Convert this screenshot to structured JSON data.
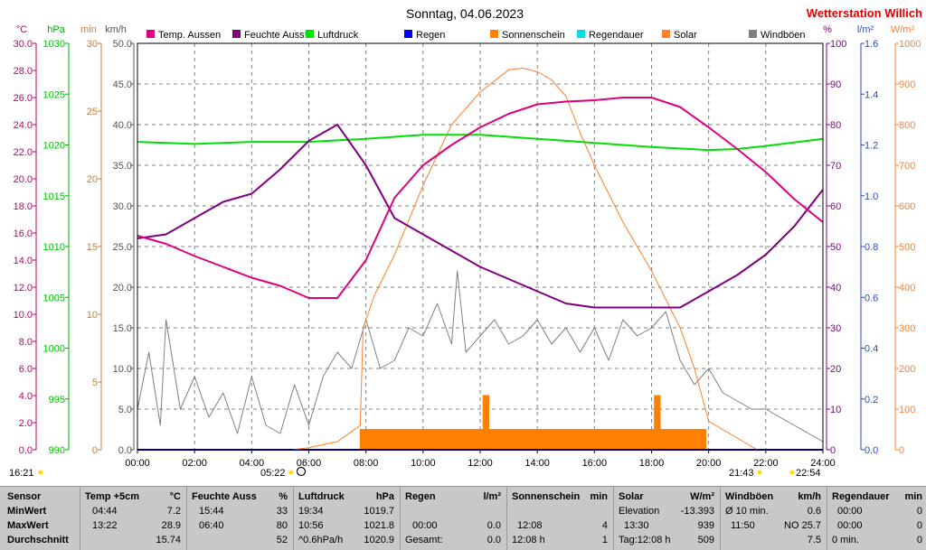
{
  "header": {
    "title": "Sonntag, 04.06.2023",
    "brand": "Wetterstation Willich"
  },
  "colors": {
    "temp": "#e0007f",
    "humidity": "#7f007f",
    "pressure": "#00e000",
    "rain": "#0000ff",
    "sunshine": "#ff7f00",
    "rainduration": "#00e0e0",
    "solar": "#ff7f2a",
    "gust": "#7f7f7f"
  },
  "legend": [
    {
      "key": "temp",
      "label": "Temp. Aussen"
    },
    {
      "key": "humidity",
      "label": "Feuchte Auss*"
    },
    {
      "key": "pressure",
      "label": "Luftdruck"
    },
    {
      "key": "rain",
      "label": "Regen"
    },
    {
      "key": "sunshine",
      "label": "Sonnenschein"
    },
    {
      "key": "rainduration",
      "label": "Regendauer"
    },
    {
      "key": "solar",
      "label": "Solar"
    },
    {
      "key": "gust",
      "label": "Windböen"
    }
  ],
  "axes": {
    "temp": {
      "unit": "°C",
      "min": 0,
      "max": 30,
      "ticks": [
        "0.0",
        "2.0",
        "4.0",
        "6.0",
        "8.0",
        "10.0",
        "12.0",
        "14.0",
        "16.0",
        "18.0",
        "20.0",
        "22.0",
        "24.0",
        "26.0",
        "28.0",
        "30.0"
      ]
    },
    "pressure": {
      "unit": "hPa",
      "ticks": [
        "990",
        "995",
        "1000",
        "1005",
        "1010",
        "1015",
        "1020",
        "1025",
        "1030"
      ]
    },
    "minutes": {
      "unit": "min",
      "ticks": [
        "0",
        "5",
        "10",
        "15",
        "20",
        "25",
        "30"
      ]
    },
    "wind": {
      "unit": "km/h",
      "ticks": [
        "0.0",
        "5.0",
        "10.0",
        "15.0",
        "20.0",
        "25.0",
        "30.0",
        "35.0",
        "40.0",
        "45.0",
        "50.0"
      ]
    },
    "humidity": {
      "unit": "%",
      "ticks": [
        "0",
        "10",
        "20",
        "30",
        "40",
        "50",
        "60",
        "70",
        "80",
        "90",
        "100"
      ]
    },
    "rain": {
      "unit": "l/m²",
      "ticks": [
        "0.0",
        "0.2",
        "0.4",
        "0.6",
        "0.8",
        "1.0",
        "1.2",
        "1.4",
        "1.6"
      ]
    },
    "solar": {
      "unit": "W/m²",
      "ticks": [
        "0",
        "100",
        "200",
        "300",
        "400",
        "500",
        "600",
        "700",
        "800",
        "900",
        "1000"
      ]
    },
    "time": {
      "ticks": [
        "00:00",
        "02:00",
        "04:00",
        "06:00",
        "08:00",
        "10:00",
        "12:00",
        "14:00",
        "16:00",
        "18:00",
        "20:00",
        "22:00",
        "24:00"
      ]
    }
  },
  "markers": {
    "left_time": "16:21",
    "sunrise": "05:22",
    "sunset": "21:43",
    "right_time": "22:54"
  },
  "chart_data": {
    "type": "line",
    "x_unit": "hour of day",
    "xlim": [
      0,
      24
    ],
    "grid": true,
    "series": [
      {
        "name": "Temp. Aussen",
        "axis": "temp",
        "points": [
          [
            0,
            15.8
          ],
          [
            1,
            15.2
          ],
          [
            2,
            14.3
          ],
          [
            3,
            13.5
          ],
          [
            4,
            12.7
          ],
          [
            5,
            12.1
          ],
          [
            6,
            11.2
          ],
          [
            7,
            11.2
          ],
          [
            8,
            14
          ],
          [
            9,
            18.6
          ],
          [
            10,
            21
          ],
          [
            11,
            22.5
          ],
          [
            12,
            23.8
          ],
          [
            13,
            24.8
          ],
          [
            14,
            25.5
          ],
          [
            15,
            25.7
          ],
          [
            16,
            25.8
          ],
          [
            17,
            26
          ],
          [
            18,
            26
          ],
          [
            19,
            25.3
          ],
          [
            20,
            23.8
          ],
          [
            21,
            22.2
          ],
          [
            22,
            20.5
          ],
          [
            23,
            18.5
          ],
          [
            24,
            16.8
          ]
        ]
      },
      {
        "name": "Feuchte Auss*",
        "axis": "humidity",
        "points": [
          [
            0,
            52
          ],
          [
            1,
            53
          ],
          [
            2,
            57
          ],
          [
            3,
            61
          ],
          [
            4,
            63
          ],
          [
            5,
            69
          ],
          [
            6,
            76
          ],
          [
            7,
            80
          ],
          [
            8,
            70
          ],
          [
            9,
            57
          ],
          [
            10,
            53
          ],
          [
            11,
            49
          ],
          [
            12,
            45
          ],
          [
            13,
            42
          ],
          [
            14,
            39
          ],
          [
            15,
            36
          ],
          [
            16,
            35
          ],
          [
            17,
            35
          ],
          [
            18,
            35
          ],
          [
            19,
            35
          ],
          [
            20,
            39
          ],
          [
            21,
            43
          ],
          [
            22,
            48
          ],
          [
            23,
            55
          ],
          [
            24,
            64
          ]
        ]
      },
      {
        "name": "Luftdruck",
        "axis": "pressure",
        "points": [
          [
            0,
            1020.3
          ],
          [
            2,
            1020.1
          ],
          [
            4,
            1020.3
          ],
          [
            6,
            1020.3
          ],
          [
            8,
            1020.6
          ],
          [
            10,
            1021.0
          ],
          [
            12,
            1021.0
          ],
          [
            14,
            1020.6
          ],
          [
            16,
            1020.2
          ],
          [
            18,
            1019.8
          ],
          [
            20,
            1019.5
          ],
          [
            21,
            1019.6
          ],
          [
            22,
            1019.9
          ],
          [
            24,
            1020.6
          ]
        ]
      },
      {
        "name": "Solar",
        "axis": "solar",
        "points": [
          [
            5.4,
            0
          ],
          [
            6,
            5
          ],
          [
            7,
            20
          ],
          [
            7.8,
            60
          ],
          [
            7.9,
            300
          ],
          [
            8.3,
            380
          ],
          [
            9,
            480
          ],
          [
            10,
            650
          ],
          [
            11,
            800
          ],
          [
            12,
            880
          ],
          [
            13,
            935
          ],
          [
            13.5,
            939
          ],
          [
            14,
            930
          ],
          [
            14.5,
            910
          ],
          [
            15,
            870
          ],
          [
            15.5,
            780
          ],
          [
            16,
            700
          ],
          [
            17,
            560
          ],
          [
            18,
            440
          ],
          [
            19,
            300
          ],
          [
            19.5,
            200
          ],
          [
            20,
            70
          ],
          [
            21.7,
            0
          ]
        ]
      },
      {
        "name": "Sonnenschein",
        "axis": "minutes",
        "points": [
          [
            7.8,
            1.5
          ],
          [
            12.1,
            1.5
          ],
          [
            12.1,
            4
          ],
          [
            12.3,
            4
          ],
          [
            12.3,
            1.5
          ],
          [
            18.1,
            1.5
          ],
          [
            18.1,
            4
          ],
          [
            18.3,
            4
          ],
          [
            18.3,
            1.5
          ],
          [
            19.9,
            1.5
          ]
        ]
      },
      {
        "name": "Windböen",
        "axis": "wind",
        "points": [
          [
            0,
            5
          ],
          [
            0.4,
            12
          ],
          [
            0.8,
            3
          ],
          [
            1,
            16
          ],
          [
            1.5,
            5
          ],
          [
            2,
            9
          ],
          [
            2.5,
            4
          ],
          [
            3,
            7
          ],
          [
            3.5,
            2
          ],
          [
            4,
            9
          ],
          [
            4.5,
            3
          ],
          [
            5,
            2
          ],
          [
            5.5,
            8
          ],
          [
            6,
            3
          ],
          [
            6.5,
            9
          ],
          [
            7,
            12
          ],
          [
            7.5,
            10
          ],
          [
            8,
            16
          ],
          [
            8.5,
            10
          ],
          [
            9,
            11
          ],
          [
            9.5,
            15
          ],
          [
            10,
            14
          ],
          [
            10.5,
            18
          ],
          [
            11,
            13
          ],
          [
            11.2,
            22
          ],
          [
            11.5,
            12
          ],
          [
            12,
            14
          ],
          [
            12.5,
            16
          ],
          [
            13,
            13
          ],
          [
            13.5,
            14
          ],
          [
            14,
            16
          ],
          [
            14.5,
            13
          ],
          [
            15,
            15
          ],
          [
            15.5,
            12
          ],
          [
            16,
            15
          ],
          [
            16.5,
            11
          ],
          [
            17,
            16
          ],
          [
            17.5,
            14
          ],
          [
            18,
            15
          ],
          [
            18.5,
            17
          ],
          [
            19,
            11
          ],
          [
            19.5,
            8
          ],
          [
            20,
            10
          ],
          [
            20.5,
            7
          ],
          [
            21,
            6
          ],
          [
            21.5,
            5
          ],
          [
            22,
            5
          ],
          [
            22.5,
            4
          ],
          [
            23,
            3
          ],
          [
            23.5,
            2
          ],
          [
            24,
            1
          ]
        ]
      },
      {
        "name": "Regen",
        "axis": "rain",
        "points": [
          [
            0,
            0
          ],
          [
            24,
            0
          ]
        ]
      }
    ]
  },
  "stats": {
    "sensor": {
      "title": "Sensor",
      "rows": [
        "MinWert",
        "MaxWert",
        "Durchschnitt"
      ]
    },
    "temp": {
      "title": "Temp +5cm",
      "unit": "°C",
      "rows": [
        [
          "04:44",
          "7.2"
        ],
        [
          "13:22",
          "28.9"
        ],
        [
          "",
          "15.74"
        ]
      ]
    },
    "humidity": {
      "title": "Feuchte Auss",
      "unit": "%",
      "rows": [
        [
          "15:44",
          "33"
        ],
        [
          "06:40",
          "80"
        ],
        [
          "",
          "52"
        ]
      ]
    },
    "pressure": {
      "title": "Luftdruck",
      "unit": "hPa",
      "rows": [
        [
          "19:34",
          "1019.7"
        ],
        [
          "10:56",
          "1021.8"
        ],
        [
          "^0.6hPa/h",
          "1020.9"
        ]
      ]
    },
    "rain": {
      "title": "Regen",
      "unit": "l/m²",
      "rows": [
        [
          "",
          ""
        ],
        [
          "00:00",
          "0.0"
        ],
        [
          "Gesamt:",
          "0.0"
        ]
      ]
    },
    "sunshine": {
      "title": "Sonnenschein",
      "unit": "min",
      "rows": [
        [
          "",
          ""
        ],
        [
          "12:08",
          "4"
        ],
        [
          "12:08 h",
          "1"
        ]
      ]
    },
    "solar": {
      "title": "Solar",
      "unit": "W/m²",
      "rows": [
        [
          "Elevation",
          "-13.393"
        ],
        [
          "13:30",
          "939"
        ],
        [
          "Tag:12:08 h",
          "509"
        ]
      ]
    },
    "wind": {
      "title": "Windböen",
      "unit": "km/h",
      "rows": [
        [
          "Ø 10 min.",
          "0.6"
        ],
        [
          "11:50",
          "NO 25.7"
        ],
        [
          "",
          "7.5"
        ]
      ]
    },
    "rainduration": {
      "title": "Regendauer",
      "unit": "min",
      "rows": [
        [
          "00:00",
          "0"
        ],
        [
          "00:00",
          "0"
        ],
        [
          "0 min.",
          "0"
        ]
      ]
    }
  }
}
